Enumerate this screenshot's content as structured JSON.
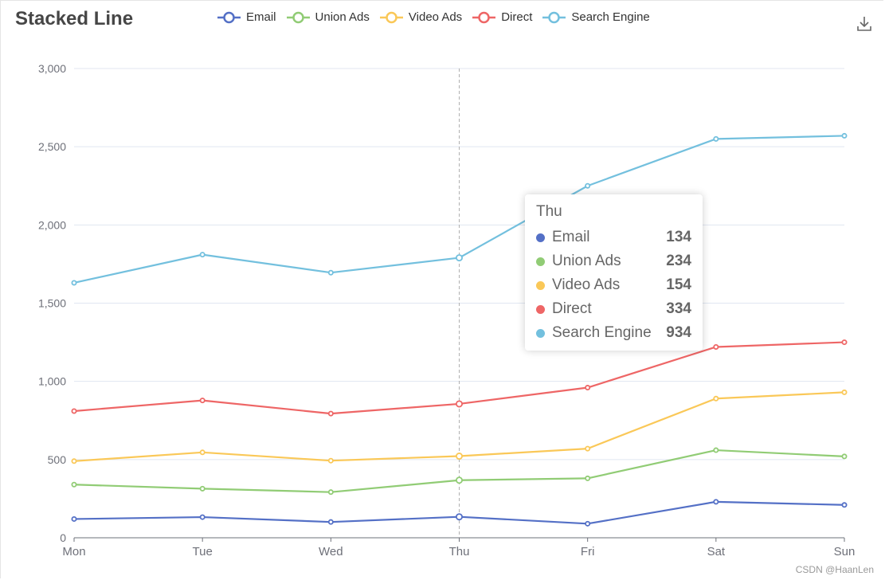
{
  "title": "Stacked Line",
  "toolbox": {
    "icon": "download-icon"
  },
  "watermark": "CSDN @HaanLen",
  "chart_data": {
    "type": "line",
    "stacked": true,
    "title": "Stacked Line",
    "categories": [
      "Mon",
      "Tue",
      "Wed",
      "Thu",
      "Fri",
      "Sat",
      "Sun"
    ],
    "yticks": [
      "0",
      "500",
      "1,000",
      "1,500",
      "2,000",
      "2,500",
      "3,000"
    ],
    "ylim": [
      0,
      3000
    ],
    "grid": true,
    "legend_position": "top-center",
    "series": [
      {
        "name": "Email",
        "color": "#5470c6",
        "values": [
          120,
          132,
          101,
          134,
          90,
          230,
          210
        ]
      },
      {
        "name": "Union Ads",
        "color": "#91cc75",
        "values": [
          220,
          182,
          191,
          234,
          290,
          330,
          310
        ]
      },
      {
        "name": "Video Ads",
        "color": "#fac858",
        "values": [
          150,
          232,
          201,
          154,
          190,
          330,
          410
        ]
      },
      {
        "name": "Direct",
        "color": "#ee6666",
        "values": [
          320,
          332,
          301,
          334,
          390,
          330,
          320
        ]
      },
      {
        "name": "Search Engine",
        "color": "#73c0de",
        "values": [
          820,
          932,
          901,
          934,
          1290,
          1330,
          1320
        ]
      }
    ],
    "axis_pointer_category": "Thu"
  },
  "tooltip": {
    "title": "Thu",
    "rows": [
      {
        "name": "Email",
        "value": "134",
        "color": "#5470c6"
      },
      {
        "name": "Union Ads",
        "value": "234",
        "color": "#91cc75"
      },
      {
        "name": "Video Ads",
        "value": "154",
        "color": "#fac858"
      },
      {
        "name": "Direct",
        "value": "334",
        "color": "#ee6666"
      },
      {
        "name": "Search Engine",
        "value": "934",
        "color": "#73c0de"
      }
    ]
  }
}
